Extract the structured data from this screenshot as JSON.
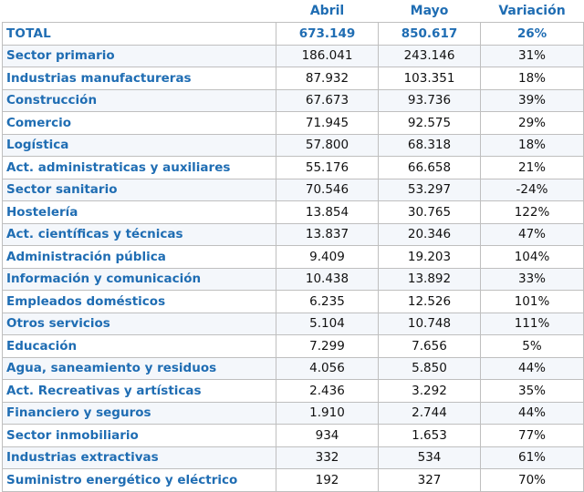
{
  "headers": {
    "col1": "",
    "col2": "Abril",
    "col3": "Mayo",
    "col4": "Variación"
  },
  "total": {
    "label": "TOTAL",
    "abril": "673.149",
    "mayo": "850.617",
    "variacion": "26%"
  },
  "rows": [
    {
      "label": "Sector primario",
      "abril": "186.041",
      "mayo": "243.146",
      "variacion": "31%"
    },
    {
      "label": "Industrias manufactureras",
      "abril": "87.932",
      "mayo": "103.351",
      "variacion": "18%"
    },
    {
      "label": "Construcción",
      "abril": "67.673",
      "mayo": "93.736",
      "variacion": "39%"
    },
    {
      "label": "Comercio",
      "abril": "71.945",
      "mayo": "92.575",
      "variacion": "29%"
    },
    {
      "label": "Logística",
      "abril": "57.800",
      "mayo": "68.318",
      "variacion": "18%"
    },
    {
      "label": "Act. administraticas y auxiliares",
      "abril": "55.176",
      "mayo": "66.658",
      "variacion": "21%"
    },
    {
      "label": "Sector sanitario",
      "abril": "70.546",
      "mayo": "53.297",
      "variacion": "-24%"
    },
    {
      "label": "Hostelería",
      "abril": "13.854",
      "mayo": "30.765",
      "variacion": "122%"
    },
    {
      "label": "Act. científicas y técnicas",
      "abril": "13.837",
      "mayo": "20.346",
      "variacion": "47%"
    },
    {
      "label": "Administración pública",
      "abril": "9.409",
      "mayo": "19.203",
      "variacion": "104%"
    },
    {
      "label": "Información y comunicación",
      "abril": "10.438",
      "mayo": "13.892",
      "variacion": "33%"
    },
    {
      "label": "Empleados domésticos",
      "abril": "6.235",
      "mayo": "12.526",
      "variacion": "101%"
    },
    {
      "label": "Otros servicios",
      "abril": "5.104",
      "mayo": "10.748",
      "variacion": "111%"
    },
    {
      "label": "Educación",
      "abril": "7.299",
      "mayo": "7.656",
      "variacion": "5%"
    },
    {
      "label": "Agua, saneamiento y residuos",
      "abril": "4.056",
      "mayo": "5.850",
      "variacion": "44%"
    },
    {
      "label": "Act. Recreativas y artísticas",
      "abril": "2.436",
      "mayo": "3.292",
      "variacion": "35%"
    },
    {
      "label": "Financiero y seguros",
      "abril": "1.910",
      "mayo": "2.744",
      "variacion": "44%"
    },
    {
      "label": "Sector inmobiliario",
      "abril": "934",
      "mayo": "1.653",
      "variacion": "77%"
    },
    {
      "label": "Industrias extractivas",
      "abril": "332",
      "mayo": "534",
      "variacion": "61%"
    },
    {
      "label": "Suministro energético y eléctrico",
      "abril": "192",
      "mayo": "327",
      "variacion": "70%"
    }
  ],
  "colors": {
    "accent": "#1f6db3",
    "border": "#bfbfbf"
  }
}
